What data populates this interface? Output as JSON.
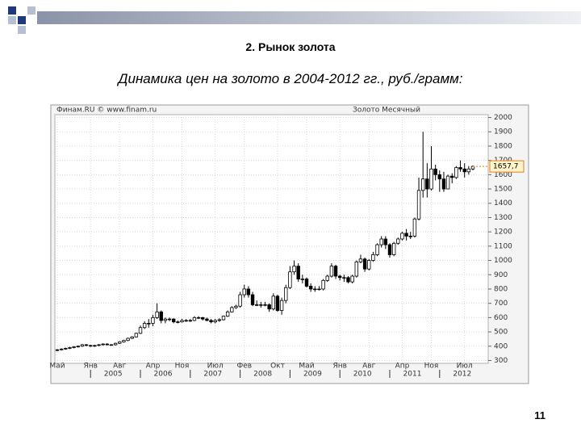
{
  "slide": {
    "title": "2. Рынок золота",
    "subtitle": "Динамика цен на золото в 2004-2012 гг., руб./грамм:",
    "page_number": "11"
  },
  "chart_data": {
    "type": "candlestick",
    "source": "Финам.RU © www.finam.ru",
    "instrument": "Золото Месячный",
    "categories": [
      "Май",
      null,
      null,
      null,
      null,
      null,
      null,
      null,
      "Янв",
      null,
      null,
      null,
      null,
      null,
      null,
      "Авг",
      null,
      null,
      null,
      null,
      null,
      null,
      null,
      "Апр",
      null,
      null,
      null,
      null,
      null,
      null,
      "Ноя",
      null,
      null,
      null,
      null,
      null,
      null,
      null,
      "Июл",
      null,
      null,
      null,
      null,
      null,
      null,
      "Фев",
      null,
      null,
      null,
      null,
      null,
      null,
      null,
      "Окт",
      null,
      null,
      null,
      null,
      null,
      null,
      "Май",
      null,
      null,
      null,
      null,
      null,
      null,
      null,
      "Янв",
      null,
      null,
      null,
      null,
      null,
      null,
      "Авг",
      null,
      null,
      null,
      null,
      null,
      null,
      null,
      "Апр",
      null,
      null,
      null,
      null,
      null,
      null,
      "Ноя",
      null,
      null,
      null,
      null,
      null,
      null,
      null,
      "Июл",
      null,
      null
    ],
    "open": [
      370,
      375,
      380,
      385,
      390,
      395,
      400,
      410,
      405,
      400,
      405,
      410,
      415,
      410,
      410,
      420,
      430,
      440,
      455,
      465,
      490,
      530,
      560,
      560,
      600,
      640,
      580,
      590,
      590,
      570,
      570,
      580,
      580,
      580,
      600,
      600,
      590,
      580,
      570,
      580,
      585,
      610,
      640,
      670,
      680,
      760,
      800,
      760,
      690,
      690,
      690,
      690,
      660,
      750,
      650,
      720,
      810,
      920,
      960,
      870,
      870,
      820,
      800,
      800,
      800,
      860,
      890,
      960,
      890,
      880,
      880,
      850,
      890,
      990,
      1010,
      940,
      1000,
      1040,
      1110,
      1150,
      1110,
      1040,
      1120,
      1150,
      1190,
      1170,
      1170,
      1290,
      1490,
      1570,
      1500,
      1640,
      1600,
      1570,
      1500,
      1590,
      1580,
      1650,
      1640,
      1620,
      1640
    ],
    "high": [
      380,
      385,
      390,
      395,
      400,
      405,
      415,
      415,
      410,
      410,
      415,
      420,
      420,
      415,
      425,
      435,
      445,
      460,
      470,
      495,
      545,
      575,
      590,
      620,
      700,
      650,
      600,
      600,
      595,
      580,
      590,
      590,
      590,
      610,
      610,
      605,
      600,
      590,
      590,
      595,
      615,
      650,
      680,
      690,
      780,
      830,
      820,
      780,
      720,
      710,
      710,
      700,
      770,
      760,
      740,
      830,
      960,
      1000,
      980,
      900,
      880,
      840,
      820,
      820,
      870,
      900,
      980,
      970,
      900,
      900,
      890,
      900,
      1000,
      1040,
      1020,
      1010,
      1060,
      1120,
      1170,
      1170,
      1120,
      1130,
      1160,
      1200,
      1220,
      1200,
      1300,
      1580,
      1900,
      1680,
      1800,
      1670,
      1630,
      1620,
      1600,
      1610,
      1660,
      1700,
      1680,
      1660,
      1665
    ],
    "low": [
      365,
      370,
      375,
      380,
      385,
      390,
      395,
      400,
      395,
      395,
      400,
      405,
      405,
      405,
      405,
      415,
      425,
      435,
      450,
      460,
      485,
      520,
      530,
      540,
      590,
      560,
      560,
      575,
      560,
      560,
      565,
      570,
      570,
      575,
      590,
      580,
      575,
      560,
      560,
      570,
      580,
      605,
      635,
      660,
      670,
      740,
      740,
      680,
      680,
      670,
      680,
      640,
      650,
      640,
      620,
      700,
      800,
      900,
      850,
      840,
      810,
      780,
      780,
      790,
      790,
      850,
      880,
      870,
      860,
      850,
      840,
      840,
      880,
      980,
      920,
      930,
      990,
      1030,
      1090,
      1080,
      1020,
      1030,
      1110,
      1140,
      1140,
      1150,
      1160,
      1280,
      1440,
      1440,
      1490,
      1560,
      1480,
      1480,
      1500,
      1540,
      1570,
      1620,
      1580,
      1600,
      1630
    ],
    "close": [
      375,
      380,
      385,
      390,
      395,
      400,
      410,
      405,
      400,
      405,
      410,
      415,
      410,
      410,
      420,
      430,
      440,
      455,
      465,
      490,
      530,
      560,
      560,
      600,
      640,
      580,
      590,
      590,
      570,
      570,
      580,
      580,
      580,
      600,
      600,
      590,
      580,
      570,
      580,
      585,
      610,
      640,
      670,
      680,
      760,
      800,
      760,
      690,
      690,
      690,
      690,
      660,
      750,
      650,
      720,
      810,
      920,
      960,
      870,
      870,
      820,
      800,
      800,
      800,
      860,
      890,
      960,
      890,
      880,
      880,
      850,
      890,
      990,
      1010,
      940,
      1000,
      1040,
      1110,
      1150,
      1110,
      1040,
      1120,
      1150,
      1190,
      1170,
      1170,
      1290,
      1490,
      1570,
      1500,
      1640,
      1600,
      1570,
      1500,
      1590,
      1580,
      1650,
      1640,
      1620,
      1640,
      1658
    ],
    "ylim": [
      280,
      2020
    ],
    "yticks": [
      2000,
      1900,
      1800,
      1700,
      1600,
      1500,
      1400,
      1300,
      1200,
      1100,
      1000,
      900,
      800,
      700,
      600,
      500,
      400,
      300
    ],
    "year_ticks": [
      {
        "value": 8,
        "label": "2005"
      },
      {
        "value": 20,
        "label": "2006"
      },
      {
        "value": 32,
        "label": "2007"
      },
      {
        "value": 44,
        "label": "2008"
      },
      {
        "value": 56,
        "label": "2009"
      },
      {
        "value": 68,
        "label": "2010"
      },
      {
        "value": 80,
        "label": "2011"
      },
      {
        "value": 92,
        "label": "2012"
      }
    ],
    "last_price": {
      "value": 1657.7,
      "label": "1657,7"
    },
    "grid": true,
    "up_color": "#ffffff",
    "down_color": "#000000"
  }
}
